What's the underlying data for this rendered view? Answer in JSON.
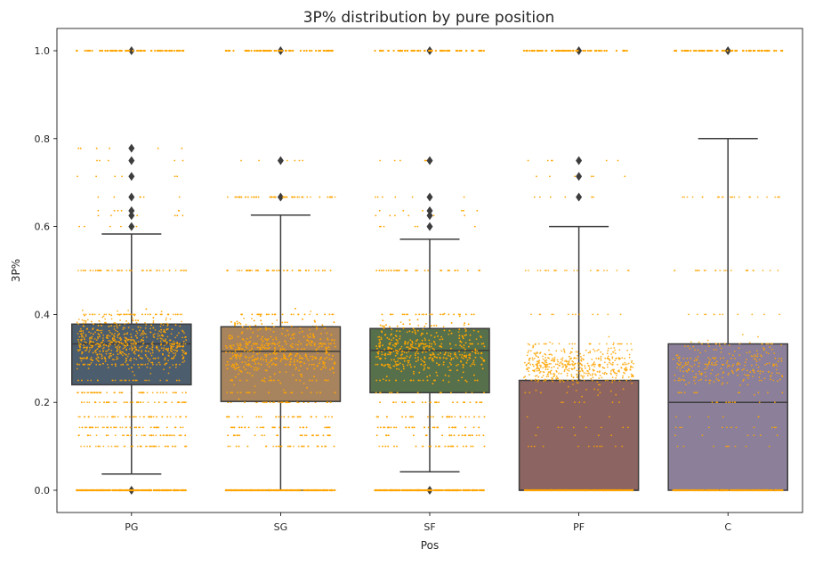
{
  "chart_data": {
    "type": "box",
    "title": "3P% distribution by pure position",
    "xlabel": "Pos",
    "ylabel": "3P%",
    "ylim": [
      -0.05,
      1.05
    ],
    "yticks": [
      "0.0",
      "0.2",
      "0.4",
      "0.6",
      "0.8",
      "1.0"
    ],
    "categories": [
      "PG",
      "SG",
      "SF",
      "PF",
      "C"
    ],
    "grid": false,
    "overlay": "stripplot",
    "point_color": "#ffa500",
    "boxes": [
      {
        "category": "PG",
        "color": "#4c5d6e",
        "q1": 0.24,
        "median": 0.333,
        "q3": 0.378,
        "whisker_low": 0.037,
        "whisker_high": 0.583,
        "outliers": [
          0.0,
          0.6,
          0.625,
          0.636,
          0.667,
          0.714,
          0.75,
          0.778,
          1.0
        ]
      },
      {
        "category": "SG",
        "color": "#a8845e",
        "q1": 0.202,
        "median": 0.316,
        "q3": 0.372,
        "whisker_low": 0.0,
        "whisker_high": 0.626,
        "outliers": [
          0.667,
          0.75,
          1.0
        ]
      },
      {
        "category": "SF",
        "color": "#55704a",
        "q1": 0.222,
        "median": 0.318,
        "q3": 0.368,
        "whisker_low": 0.042,
        "whisker_high": 0.571,
        "outliers": [
          0.0,
          0.6,
          0.625,
          0.636,
          0.667,
          0.75,
          1.0
        ]
      },
      {
        "category": "PF",
        "color": "#8c6462",
        "q1": 0.0,
        "median": 0.0,
        "q3": 0.25,
        "whisker_low": 0.0,
        "whisker_high": 0.6,
        "outliers": [
          0.667,
          0.714,
          0.75,
          1.0
        ]
      },
      {
        "category": "C",
        "color": "#8b7f9a",
        "q1": 0.0,
        "median": 0.2,
        "q3": 0.333,
        "whisker_low": 0.0,
        "whisker_high": 0.8,
        "outliers": [
          1.0
        ]
      }
    ]
  }
}
